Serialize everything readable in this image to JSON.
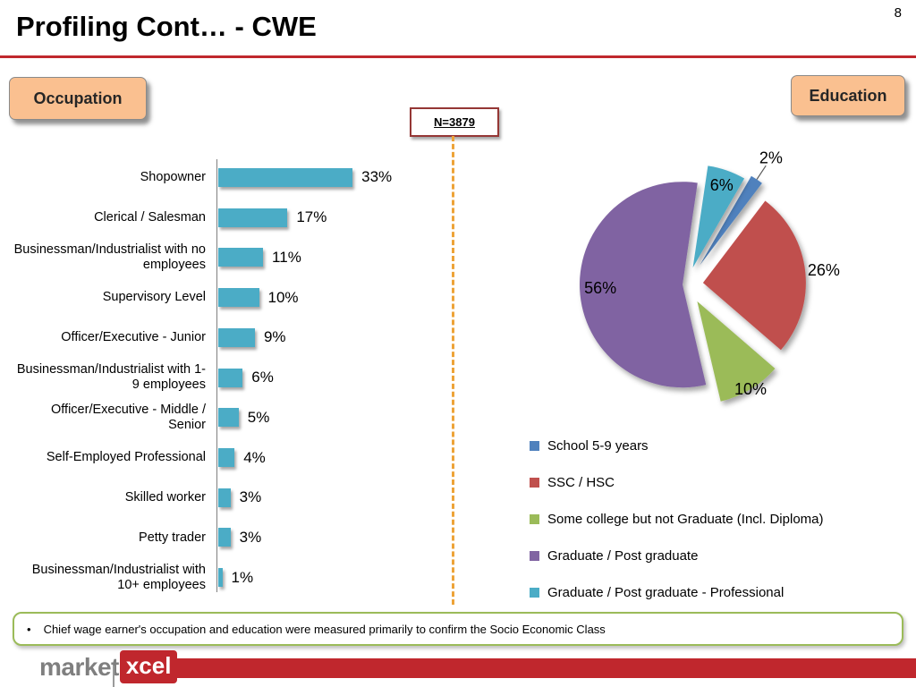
{
  "slide": {
    "page_number": "8",
    "title": "Profiling Cont… - CWE",
    "occupation_label": "Occupation",
    "education_label": "Education",
    "sample_size": "N=3879",
    "footnote_bullet": "•",
    "footnote": "Chief wage earner's occupation and education were measured primarily to confirm the Socio Economic Class",
    "logo_market": "market",
    "logo_xcel": "xcel"
  },
  "colors": {
    "accent_red": "#C0272D",
    "bar_teal": "#4BACC6",
    "dashed_orange": "#EDA338",
    "badge_tan": "#FAC090",
    "note_border": "#9BBB59",
    "nbox_border": "#953735"
  },
  "chart_data": [
    {
      "type": "bar",
      "name": "occupation",
      "orientation": "horizontal",
      "title": "Occupation",
      "categories": [
        "Shopowner",
        "Clerical / Salesman",
        "Businessman/Industrialist with no employees",
        "Supervisory Level",
        "Officer/Executive - Junior",
        "Businessman/Industrialist with 1-9 employees",
        "Officer/Executive - Middle / Senior",
        "Self-Employed Professional",
        "Skilled worker",
        "Petty trader",
        "Businessman/Industrialist with 10+ employees"
      ],
      "values": [
        33,
        17,
        11,
        10,
        9,
        6,
        5,
        4,
        3,
        3,
        1
      ],
      "labels": [
        "33%",
        "17%",
        "11%",
        "10%",
        "9%",
        "6%",
        "5%",
        "4%",
        "3%",
        "3%",
        "1%"
      ],
      "bar_color": "#4BACC6",
      "xlim": [
        0,
        35
      ],
      "grid": false,
      "legend_position": "none"
    },
    {
      "type": "pie",
      "name": "education",
      "title": "Education",
      "start_angle": 30,
      "slices": [
        {
          "label": "School 5-9 years",
          "value": 2,
          "display": "2%",
          "color": "#4F81BD",
          "explode": 26,
          "label_factor": 1.25,
          "leader": true
        },
        {
          "label": "SSC / HSC",
          "value": 26,
          "display": "26%",
          "color": "#C0504D",
          "explode": 18,
          "label_factor": 1.18
        },
        {
          "label": "Some college but not Graduate (Incl. Diploma)",
          "value": 10,
          "display": "10%",
          "color": "#9BBB59",
          "explode": 22,
          "label_factor": 1.0
        },
        {
          "label": "Graduate / Post graduate",
          "value": 56,
          "display": "56%",
          "color": "#8064A2",
          "explode": 5,
          "label_factor": 0.8
        },
        {
          "label": "Graduate / Post graduate - Professional",
          "value": 6,
          "display": "6%",
          "color": "#4BACC6",
          "explode": 20,
          "label_factor": 0.85
        }
      ],
      "legend_position": "bottom-left",
      "grid": false
    }
  ]
}
